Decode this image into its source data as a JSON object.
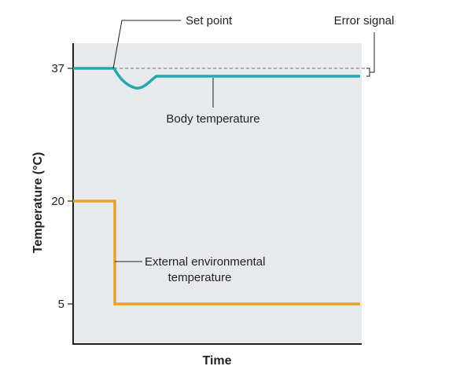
{
  "chart_data": {
    "type": "line",
    "ylabel": "Temperature (°C)",
    "xlabel": "Time",
    "yticks": [
      {
        "value": 37,
        "label": "37"
      },
      {
        "value": 20,
        "label": "20"
      },
      {
        "value": 5,
        "label": "5"
      }
    ],
    "annotations": {
      "set_point": "Set point",
      "error_signal": "Error signal",
      "body_temperature": "Body temperature",
      "external_line1": "External environmental",
      "external_line2": "temperature"
    },
    "series": [
      {
        "key": "set_point",
        "value": 37,
        "style": "dashed"
      },
      {
        "key": "body_temperature",
        "values_described": "starts at 37, dips after environmental drop, stabilizes slightly below 37"
      },
      {
        "key": "external_temperature",
        "values_described": "20 then drops to 5"
      }
    ]
  },
  "colors": {
    "panel_bg": "#e7eaed",
    "body_line": "#21a9ae",
    "external_line": "#e9a21f",
    "axis": "#231f20",
    "set_point_dash": "#6d6e71"
  }
}
